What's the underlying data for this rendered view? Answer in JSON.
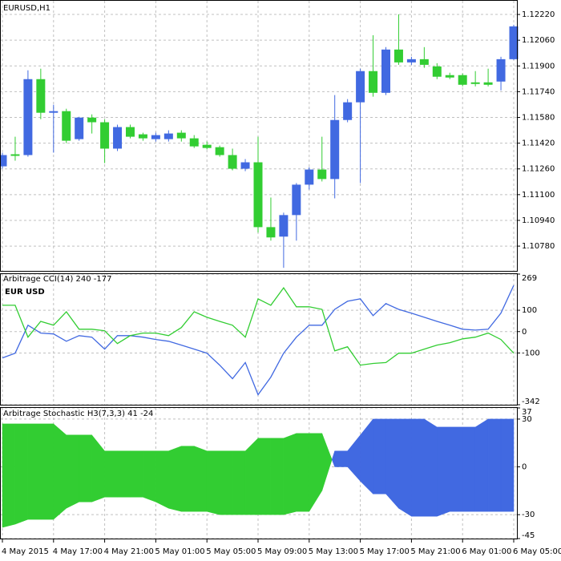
{
  "chart_data": [
    {
      "type": "candlestick",
      "title": "EURUSD,H1",
      "categories": [
        "4 May 2015",
        null,
        null,
        null,
        "4 May 17:00",
        null,
        null,
        null,
        "4 May 21:00",
        null,
        null,
        null,
        "5 May 01:00",
        null,
        null,
        null,
        "5 May 05:00",
        null,
        null,
        null,
        "5 May 09:00",
        null,
        null,
        null,
        "5 May 13:00",
        null,
        null,
        null,
        "5 May 17:00",
        null,
        null,
        null,
        "5 May 21:00",
        null,
        null,
        null,
        "6 May 01:00",
        null,
        null,
        null,
        "6 May 05:00"
      ],
      "open": [
        1.11276,
        1.11351,
        1.11346,
        1.11818,
        1.11609,
        1.11619,
        1.11445,
        1.11579,
        1.1155,
        1.11386,
        1.1152,
        1.11475,
        1.11445,
        1.11445,
        1.11485,
        1.1145,
        1.1141,
        1.11395,
        1.11346,
        1.11261,
        1.11301,
        1.10898,
        1.10839,
        1.10973,
        1.11162,
        1.11256,
        1.11197,
        1.11564,
        1.11674,
        1.11868,
        1.11733,
        1.12002,
        1.11922,
        1.11942,
        1.11897,
        1.11843,
        1.11843,
        1.11798,
        1.11798,
        1.11803,
        1.11942
      ],
      "high": [
        1.11361,
        1.1146,
        1.11873,
        1.11883,
        1.11659,
        1.11634,
        1.11584,
        1.11599,
        1.11569,
        1.11535,
        1.11535,
        1.11485,
        1.11485,
        1.115,
        1.115,
        1.1147,
        1.1143,
        1.11405,
        1.11386,
        1.11321,
        1.1146,
        1.11082,
        1.10988,
        1.11172,
        1.11271,
        1.1146,
        1.11719,
        1.11694,
        1.11883,
        1.12091,
        1.12017,
        1.12221,
        1.11957,
        1.12017,
        1.11917,
        1.11858,
        1.11853,
        1.11868,
        1.11883,
        1.11957,
        1.12156
      ],
      "low": [
        1.11261,
        1.11311,
        1.11336,
        1.11569,
        1.11361,
        1.1142,
        1.11435,
        1.1148,
        1.11296,
        1.11371,
        1.1145,
        1.11435,
        1.1143,
        1.1143,
        1.1143,
        1.1139,
        1.11381,
        1.11336,
        1.11251,
        1.11246,
        1.10864,
        1.10814,
        1.10645,
        1.10814,
        1.11132,
        1.11182,
        1.11077,
        1.1155,
        1.11172,
        1.11709,
        1.11719,
        1.11907,
        1.11907,
        1.11888,
        1.11818,
        1.11818,
        1.11773,
        1.11773,
        1.11773,
        1.11748,
        1.11937
      ],
      "close": [
        1.11346,
        1.11341,
        1.11818,
        1.11609,
        1.11619,
        1.11435,
        1.11579,
        1.1155,
        1.11386,
        1.1152,
        1.1146,
        1.1145,
        1.1147,
        1.1148,
        1.1145,
        1.114,
        1.1139,
        1.11346,
        1.11261,
        1.11301,
        1.10898,
        1.10834,
        1.10973,
        1.11162,
        1.11256,
        1.11197,
        1.11564,
        1.11674,
        1.11868,
        1.11733,
        1.12002,
        1.11922,
        1.11942,
        1.11907,
        1.11833,
        1.11828,
        1.11783,
        1.11788,
        1.11783,
        1.11942,
        1.12146
      ],
      "up_color": "#4169e1",
      "down_color": "#32cd32",
      "ylim": [
        1.10626,
        1.12305
      ],
      "yticks": [
        {
          "value": 1.1078,
          "label": "1.10780"
        },
        {
          "value": 1.1094,
          "label": "1.10940"
        },
        {
          "value": 1.111,
          "label": "1.11100"
        },
        {
          "value": 1.1126,
          "label": "1.11260"
        },
        {
          "value": 1.1142,
          "label": "1.11420"
        },
        {
          "value": 1.1158,
          "label": "1.11580"
        },
        {
          "value": 1.1174,
          "label": "1.11740"
        },
        {
          "value": 1.119,
          "label": "1.11900"
        },
        {
          "value": 1.1206,
          "label": "1.12060"
        },
        {
          "value": 1.1222,
          "label": "1.12220"
        }
      ],
      "grid": true
    },
    {
      "type": "line",
      "title": "Arbitrage CCI(14) 240 -177",
      "series": [
        {
          "name": "EUR",
          "color": "#4169e1",
          "values": [
            -123,
            -101,
            30,
            -7,
            -11,
            -45,
            -19,
            -26,
            -82,
            -19,
            -19,
            -26,
            -37,
            -45,
            -63,
            -82,
            -101,
            -157,
            -220,
            -145,
            -295,
            -213,
            -101,
            -26,
            30,
            30,
            104,
            142,
            153,
            75,
            131,
            104,
            86,
            67,
            48,
            30,
            11,
            7,
            11,
            86,
            216
          ]
        },
        {
          "name": "USD",
          "color": "#32cd32",
          "values": [
            123,
            123,
            -26,
            48,
            30,
            93,
            11,
            11,
            4,
            -56,
            -19,
            -7,
            -7,
            -19,
            19,
            93,
            67,
            48,
            30,
            -26,
            153,
            123,
            205,
            116,
            116,
            104,
            -90,
            -71,
            -157,
            -149,
            -145,
            -101,
            -101,
            -82,
            -63,
            -52,
            -34,
            -26,
            -7,
            -37,
            -101
          ]
        }
      ],
      "ylim": [
        -342,
        269
      ],
      "yticks": [
        -342,
        -100,
        0,
        100,
        269
      ],
      "grid": true
    },
    {
      "type": "band",
      "title": "Arbitrage Stochastic H3(7,3,3) 41 -24",
      "series": [
        {
          "color": "#32cd32",
          "values": [
            27,
            27,
            27,
            27,
            27,
            20,
            20,
            20,
            10,
            10,
            10,
            10,
            10,
            10,
            13,
            13,
            10,
            10,
            10,
            10,
            18,
            18,
            18,
            21,
            21,
            21,
            0,
            0,
            -9,
            -17,
            -17,
            -26,
            -31,
            -31,
            -31,
            -28,
            -28,
            -28,
            -28,
            -28,
            -28
          ]
        },
        {
          "color": "#4169e1",
          "values": [
            -38,
            -36,
            -33,
            -33,
            -33,
            -26,
            -22,
            -22,
            -19,
            -19,
            -19,
            -19,
            -22,
            -26,
            -28,
            -28,
            -28,
            -30,
            -30,
            -30,
            -30,
            -30,
            -30,
            -28,
            -28,
            -15,
            10,
            10,
            20,
            30,
            30,
            30,
            30,
            30,
            25,
            25,
            25,
            25,
            30,
            30,
            30
          ]
        }
      ],
      "ylim": [
        -45,
        37
      ],
      "yticks": [
        -45,
        -30,
        0,
        30,
        37
      ],
      "grid": true
    }
  ]
}
